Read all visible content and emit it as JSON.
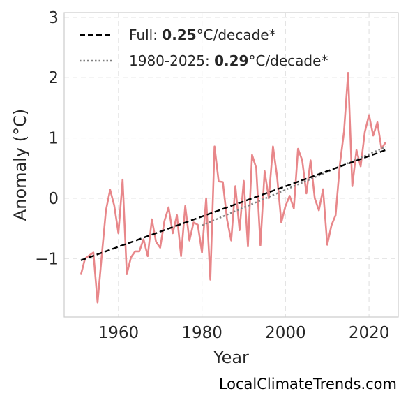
{
  "chart_data": {
    "type": "line",
    "xlabel": "Year",
    "ylabel": "Anomaly (°C)",
    "xlim": [
      1947,
      2027
    ],
    "ylim": [
      -1.97,
      3.08
    ],
    "xticks": [
      1960,
      1980,
      2000,
      2020
    ],
    "yticks": [
      -1,
      0,
      1,
      2,
      3
    ],
    "ytick_labels": [
      "−1",
      "0",
      "1",
      "2",
      "3"
    ],
    "grid": true,
    "legend_position": "top-left",
    "colors": {
      "data": "#e8878a",
      "full_trend": "#000000",
      "recent_trend": "#808080"
    },
    "series": [
      {
        "style": "solid",
        "x": [
          1951,
          1952,
          1953,
          1954,
          1955,
          1956,
          1957,
          1958,
          1959,
          1960,
          1961,
          1962,
          1963,
          1964,
          1965,
          1966,
          1967,
          1968,
          1969,
          1970,
          1971,
          1972,
          1973,
          1974,
          1975,
          1976,
          1977,
          1978,
          1979,
          1980,
          1981,
          1982,
          1983,
          1984,
          1985,
          1986,
          1987,
          1988,
          1989,
          1990,
          1991,
          1992,
          1993,
          1994,
          1995,
          1996,
          1997,
          1998,
          1999,
          2000,
          2001,
          2002,
          2003,
          2004,
          2005,
          2006,
          2007,
          2008,
          2009,
          2010,
          2011,
          2012,
          2013,
          2014,
          2015,
          2016,
          2017,
          2018,
          2019,
          2020,
          2021,
          2022,
          2023,
          2024
        ],
        "values": [
          -1.27,
          -1.0,
          -0.95,
          -0.9,
          -1.73,
          -0.95,
          -0.2,
          0.14,
          -0.12,
          -0.58,
          0.31,
          -1.26,
          -0.98,
          -0.88,
          -0.88,
          -0.68,
          -0.96,
          -0.35,
          -0.72,
          -0.82,
          -0.38,
          -0.15,
          -0.58,
          -0.28,
          -0.96,
          -0.13,
          -0.7,
          -0.4,
          -0.44,
          -0.9,
          0.0,
          -1.35,
          0.86,
          0.28,
          0.27,
          -0.35,
          -0.7,
          0.2,
          -0.53,
          0.29,
          -0.8,
          0.72,
          0.5,
          -0.78,
          0.45,
          0.0,
          0.86,
          0.35,
          -0.4,
          -0.13,
          0.04,
          -0.17,
          0.82,
          0.63,
          0.08,
          0.63,
          0.0,
          -0.2,
          0.15,
          -0.77,
          -0.45,
          -0.28,
          0.55,
          1.1,
          2.08,
          0.2,
          0.8,
          0.53,
          1.1,
          1.38,
          1.04,
          1.26,
          0.82,
          0.93
        ]
      },
      {
        "name": "Full",
        "style": "dashed",
        "x": [
          1951,
          2024
        ],
        "values": [
          -1.03,
          0.8
        ]
      },
      {
        "name": "1980-2025",
        "style": "dotted",
        "x": [
          1980,
          2024
        ],
        "values": [
          -0.45,
          0.85
        ]
      }
    ],
    "legend": [
      {
        "prefix": "Full: ",
        "value": "0.25",
        "suffix": "°C/decade*"
      },
      {
        "prefix": "1980-2025: ",
        "value": "0.29",
        "suffix": "°C/decade*"
      }
    ]
  },
  "watermark": "LocalClimateTrends.com"
}
